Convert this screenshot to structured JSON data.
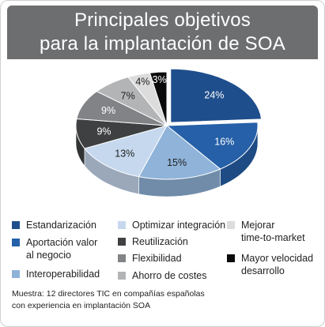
{
  "title": {
    "line1": "Principales objetivos",
    "line2": "para la implantación de SOA"
  },
  "chart_data": {
    "type": "pie",
    "style": "3d-exploded-slice",
    "slices": [
      {
        "label": "Estandarización",
        "value": 24,
        "display": "24%",
        "color": "#1f4e8c"
      },
      {
        "label": "Aportación valor\nal negocio",
        "value": 16,
        "display": "16%",
        "color": "#2660a8"
      },
      {
        "label": "Interoperabilidad",
        "value": 15,
        "display": "15%",
        "color": "#8fb3d9"
      },
      {
        "label": "Optimizar integración",
        "value": 13,
        "display": "13%",
        "color": "#c5d8ee"
      },
      {
        "label": "Reutilización",
        "value": 9,
        "display": "9%",
        "color": "#3f4042"
      },
      {
        "label": "Flexibilidad",
        "value": 9,
        "display": "9%",
        "color": "#828387"
      },
      {
        "label": "Ahorro de costes",
        "value": 7,
        "display": "7%",
        "color": "#b3b4b6"
      },
      {
        "label": "Mejorar\ntime-to-market",
        "value": 4,
        "display": "4%",
        "color": "#dcdcdd"
      },
      {
        "label": "Mayor velocidad\ndesarrollo",
        "value": 3,
        "display": "3%",
        "color": "#0b0b0b"
      }
    ],
    "legend_position": "bottom"
  },
  "legend": [
    {
      "label": "Estandarización",
      "color": "#1f4e8c"
    },
    {
      "label": "Aportación valor\nal negocio",
      "color": "#2660a8"
    },
    {
      "label": "Interoperabilidad",
      "color": "#8fb3d9"
    },
    {
      "label": "Optimizar integración",
      "color": "#c5d8ee"
    },
    {
      "label": "Reutilización",
      "color": "#3f4042"
    },
    {
      "label": "Flexibilidad",
      "color": "#828387"
    },
    {
      "label": "Ahorro de costes",
      "color": "#b3b4b6"
    },
    {
      "label": "Mejorar\ntime-to-market",
      "color": "#dcdcdd"
    },
    {
      "label": "Mayor velocidad\ndesarrollo",
      "color": "#0b0b0b"
    }
  ],
  "footnote": {
    "line1": "Muestra: 12 directores TIC en compañías españolas",
    "line2": "con experiencia en implantación SOA"
  }
}
